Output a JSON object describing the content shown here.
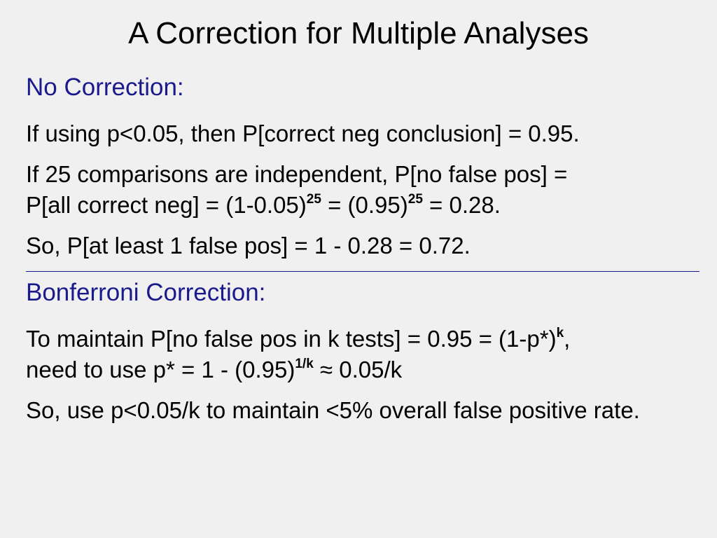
{
  "title": "A Correction for Multiple Analyses",
  "section1": {
    "heading": "No Correction:",
    "p1": "If using p<0.05, then P[correct neg conclusion] = 0.95.",
    "p2": {
      "line1": "If 25 comparisons are independent, P[no false pos] =",
      "line2_a": "P[all correct neg] = (1-0.05)",
      "exp1": "25",
      "line2_b": " = (0.95)",
      "exp2": "25",
      "line2_c": " = 0.28."
    },
    "p3": "So, P[at least 1 false pos] = 1 - 0.28 = 0.72."
  },
  "section2": {
    "heading": "Bonferroni Correction:",
    "p1": {
      "line1_a": "To maintain P[no false pos in k tests] = 0.95 = (1-p*)",
      "exp1": "k",
      "line1_b": ",",
      "line2_a": "need to use p* = 1 - (0.95)",
      "exp2": "1/k",
      "line2_b": " ≈ 0.05/k"
    },
    "p2": "So, use p<0.05/k to maintain <5% overall false positive rate."
  },
  "colors": {
    "heading": "#1a1a8c",
    "text": "#000000",
    "background": "#f0f0f0",
    "rule": "#1a1a8c"
  }
}
